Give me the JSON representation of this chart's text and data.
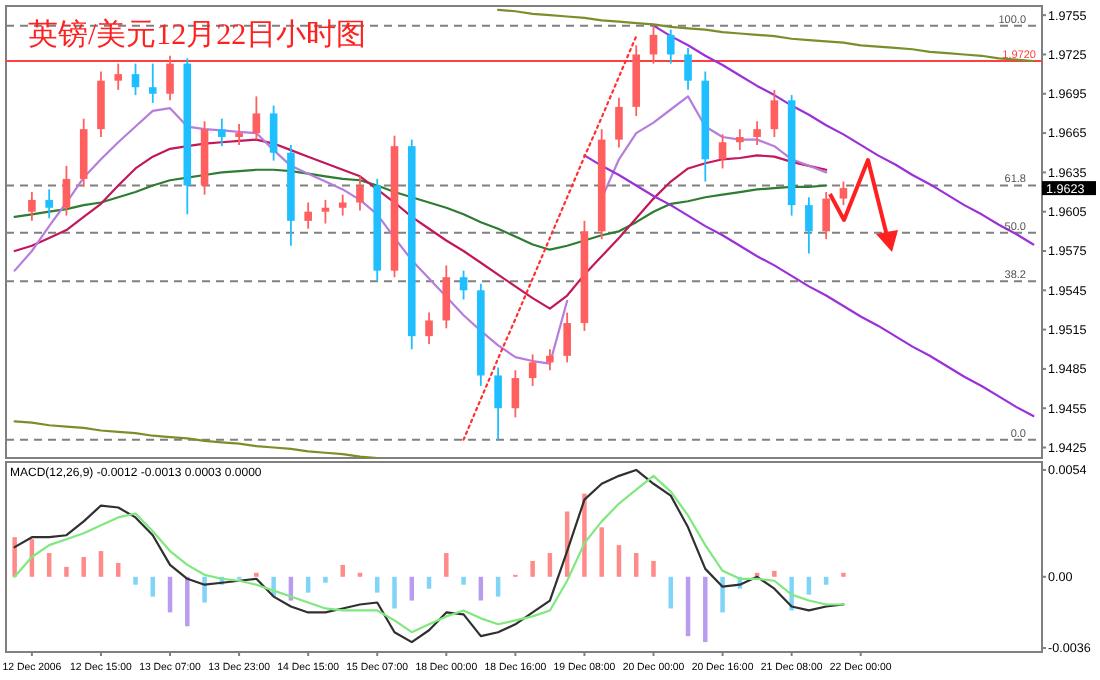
{
  "chart_data": [
    {
      "type": "candlestick",
      "title": "英镑/美元12月22日小时图",
      "categories": [
        null,
        null,
        null,
        null,
        null,
        null,
        null,
        null,
        null,
        null,
        null,
        null,
        null,
        null,
        null,
        null,
        null,
        null,
        null,
        null,
        null,
        null,
        null,
        null,
        null,
        null,
        null,
        null,
        null,
        null,
        null,
        null,
        null,
        null,
        null,
        null,
        null,
        null,
        null,
        null,
        null,
        null,
        null,
        null,
        null,
        null,
        null,
        null,
        null,
        null,
        null,
        null,
        null,
        null,
        null,
        null,
        null,
        null,
        null,
        null
      ],
      "ohlc": [
        null,
        [
          1.9605,
          1.962,
          1.9598,
          1.9614
        ],
        [
          1.9614,
          1.9622,
          1.96,
          1.9608
        ],
        [
          1.9608,
          1.964,
          1.9602,
          1.963
        ],
        [
          1.963,
          1.9676,
          1.9624,
          1.9668
        ],
        [
          1.9668,
          1.9712,
          1.9662,
          1.9705
        ],
        [
          1.9705,
          1.9718,
          1.9698,
          1.971
        ],
        [
          1.971,
          1.9718,
          1.9694,
          1.97
        ],
        [
          1.97,
          1.9718,
          1.9688,
          1.9695
        ],
        [
          1.9695,
          1.9724,
          1.969,
          1.9718
        ],
        [
          1.9718,
          1.9722,
          1.9603,
          1.9625
        ],
        [
          1.9625,
          1.9674,
          1.9618,
          1.9668
        ],
        [
          1.9668,
          1.9676,
          1.9655,
          1.9662
        ],
        [
          1.9662,
          1.9672,
          1.9656,
          1.9665
        ],
        [
          1.9665,
          1.9693,
          1.966,
          1.968
        ],
        [
          1.968,
          1.9686,
          1.9644,
          1.965
        ],
        [
          1.965,
          1.9656,
          1.9579,
          1.9598
        ],
        [
          1.9598,
          1.9612,
          1.9592,
          1.9605
        ],
        [
          1.9605,
          1.9614,
          1.9596,
          1.9608
        ],
        [
          1.9608,
          1.9618,
          1.9602,
          1.9612
        ],
        [
          1.9612,
          1.9632,
          1.9606,
          1.9625
        ],
        [
          1.9625,
          1.963,
          1.9552,
          1.956
        ],
        [
          1.956,
          1.9663,
          1.9555,
          1.9655
        ],
        [
          1.9655,
          1.966,
          1.95,
          1.951
        ],
        [
          1.951,
          1.9528,
          1.9504,
          1.9522
        ],
        [
          1.9522,
          1.9564,
          1.9516,
          1.9555
        ],
        [
          1.9555,
          1.956,
          1.9538,
          1.9545
        ],
        [
          1.9545,
          1.955,
          1.9472,
          1.948
        ],
        [
          1.948,
          1.9486,
          1.9431,
          1.9455
        ],
        [
          1.9455,
          1.9484,
          1.9448,
          1.9478
        ],
        [
          1.9478,
          1.9496,
          1.9472,
          1.949
        ],
        [
          1.949,
          1.95,
          1.9484,
          1.9495
        ],
        [
          1.9495,
          1.9528,
          1.949,
          1.952
        ],
        [
          1.952,
          1.9598,
          1.9514,
          1.959
        ],
        [
          1.959,
          1.9668,
          1.9584,
          1.966
        ],
        [
          1.966,
          1.9692,
          1.9654,
          1.9685
        ],
        [
          1.9685,
          1.9732,
          1.9678,
          1.9725
        ],
        [
          1.9725,
          1.9747,
          1.9718,
          1.974
        ],
        [
          1.974,
          1.9744,
          1.9718,
          1.9725
        ],
        [
          1.9725,
          1.973,
          1.9698,
          1.9705
        ],
        [
          1.9705,
          1.9712,
          1.9628,
          1.9645
        ],
        [
          1.9645,
          1.9664,
          1.9638,
          1.9658
        ],
        [
          1.9658,
          1.9668,
          1.9652,
          1.9662
        ],
        [
          1.9662,
          1.9674,
          1.9656,
          1.9668
        ],
        [
          1.9668,
          1.9698,
          1.9662,
          1.969
        ],
        [
          1.969,
          1.9694,
          1.9602,
          1.961
        ],
        [
          1.961,
          1.9616,
          1.9573,
          1.959
        ],
        [
          1.959,
          1.962,
          1.9584,
          1.9615
        ],
        [
          1.9615,
          1.9628,
          1.961,
          1.9623
        ],
        null,
        null,
        null,
        null,
        null,
        null,
        null,
        null,
        null,
        null,
        null
      ],
      "colors": [
        null,
        "#ff5f5f",
        "#1ebeff",
        "#ff5f5f",
        "#ff5f5f",
        "#ff5f5f",
        "#ff5f5f",
        "#1ebeff",
        "#1ebeff",
        "#ff5f5f",
        "#1ebeff",
        "#ff5f5f",
        "#1ebeff",
        "#ff5f5f",
        "#ff5f5f",
        "#1ebeff",
        "#1ebeff",
        "#ff5f5f",
        "#ff5f5f",
        "#ff5f5f",
        "#ff5f5f",
        "#1ebeff",
        "#ff5f5f",
        "#1ebeff",
        "#ff5f5f",
        "#ff5f5f",
        "#1ebeff",
        "#1ebeff",
        "#1ebeff",
        "#ff5f5f",
        "#ff5f5f",
        "#ff5f5f",
        "#ff5f5f",
        "#ff5f5f",
        "#ff5f5f",
        "#ff5f5f",
        "#ff5f5f",
        "#ff5f5f",
        "#1ebeff",
        "#1ebeff",
        "#1ebeff",
        "#ff5f5f",
        "#ff5f5f",
        "#ff5f5f",
        "#ff5f5f",
        "#1ebeff",
        "#1ebeff",
        "#ff5f5f",
        "#ff5f5f",
        null,
        null,
        null,
        null,
        null,
        null,
        null,
        null,
        null,
        null,
        null
      ],
      "series": [
        {
          "type": "line",
          "color": "#2e7d32",
          "values": [
            1.9601,
            1.9603,
            1.9605,
            1.9607,
            1.961,
            1.9612,
            1.9616,
            1.962,
            1.9625,
            1.9629,
            1.9631,
            1.9633,
            1.9635,
            1.9636,
            1.9637,
            1.9637,
            1.9636,
            1.9634,
            1.9632,
            1.963,
            1.9629,
            1.9625,
            1.962,
            1.9616,
            1.9612,
            1.9608,
            1.9603,
            1.9597,
            1.9592,
            1.9586,
            1.958,
            1.9576,
            1.9579,
            1.9583,
            1.9587,
            1.959,
            1.9597,
            1.9605,
            1.9611,
            1.9613,
            1.9616,
            1.9618,
            1.962,
            1.9622,
            1.9623,
            1.9624,
            1.9624,
            1.9625,
            null,
            null,
            null,
            null,
            null,
            null,
            null,
            null,
            null,
            null,
            null,
            null
          ]
        },
        {
          "type": "line",
          "color": "#c2185b",
          "values": [
            1.9575,
            1.9579,
            1.9585,
            1.9591,
            1.9601,
            1.9611,
            1.9625,
            1.9638,
            1.9647,
            1.9653,
            1.9655,
            1.9657,
            1.9658,
            1.9659,
            1.966,
            1.9657,
            1.9652,
            1.9647,
            1.9642,
            1.9637,
            1.9632,
            1.9622,
            1.9612,
            1.9601,
            1.9592,
            1.9583,
            1.9575,
            1.9566,
            1.9557,
            1.9548,
            1.9539,
            1.9531,
            1.9541,
            1.9557,
            1.9571,
            1.9585,
            1.96,
            1.9615,
            1.9628,
            1.9638,
            1.9642,
            1.9645,
            1.9646,
            1.9648,
            1.9647,
            1.9643,
            1.964,
            1.9637,
            null,
            null,
            null,
            null,
            null,
            null,
            null,
            null,
            null,
            null,
            null,
            null
          ]
        },
        {
          "type": "line",
          "color": "#b57edc",
          "values": [
            1.956,
            1.9575,
            1.9594,
            1.9612,
            1.9631,
            1.9645,
            1.9658,
            1.967,
            1.9682,
            1.9684,
            1.967,
            1.9668,
            1.9667,
            1.9666,
            1.9665,
            1.9652,
            1.964,
            1.9634,
            1.9628,
            1.9622,
            1.9614,
            1.9603,
            1.9585,
            1.9568,
            1.9554,
            1.954,
            1.9526,
            1.9514,
            1.9503,
            1.9494,
            1.9491,
            1.9489,
            1.9537,
            null,
            1.9615,
            1.9645,
            1.9665,
            1.9673,
            1.9683,
            1.9693,
            1.967,
            1.9662,
            1.966,
            1.966,
            1.9655,
            1.9645,
            1.964,
            1.9635,
            null,
            null,
            null,
            null,
            null,
            null,
            null,
            null,
            null,
            null,
            null,
            null
          ]
        },
        {
          "type": "line",
          "color": "#9b30d9",
          "values": [
            null,
            null,
            null,
            null,
            null,
            null,
            null,
            null,
            null,
            null,
            null,
            null,
            null,
            null,
            null,
            null,
            null,
            null,
            null,
            null,
            null,
            null,
            null,
            null,
            null,
            null,
            null,
            null,
            null,
            null,
            null,
            null,
            null,
            null,
            null,
            null,
            null,
            1.9747,
            1.9739,
            1.9732,
            1.9724,
            1.9717,
            1.9709,
            1.9701,
            1.9694,
            1.9686,
            1.9679,
            1.9671,
            1.9664,
            1.9656,
            1.9648,
            1.9641,
            1.9633,
            1.9626,
            1.9618,
            1.961,
            1.9603,
            1.9595,
            1.9588,
            1.958
          ]
        },
        {
          "type": "line",
          "color": "#9b30d9",
          "values": [
            null,
            null,
            null,
            null,
            null,
            null,
            null,
            null,
            null,
            null,
            null,
            null,
            null,
            null,
            null,
            null,
            null,
            null,
            null,
            null,
            null,
            null,
            null,
            null,
            null,
            null,
            null,
            null,
            null,
            null,
            null,
            null,
            null,
            1.9648,
            1.964,
            1.9633,
            1.9625,
            1.9617,
            1.961,
            1.9602,
            1.9594,
            1.9587,
            1.9579,
            1.9571,
            1.9564,
            1.9556,
            1.9548,
            1.9541,
            1.9533,
            1.9525,
            1.9518,
            1.951,
            1.9502,
            1.9495,
            1.9487,
            1.9479,
            1.9472,
            1.9464,
            1.9456,
            1.9449
          ]
        },
        {
          "type": "line",
          "color": "#7a8f2a",
          "values": [
            null,
            null,
            null,
            null,
            null,
            null,
            null,
            null,
            null,
            null,
            null,
            null,
            null,
            null,
            null,
            null,
            null,
            null,
            null,
            null,
            null,
            null,
            null,
            null,
            null,
            null,
            null,
            null,
            1.9759,
            1.9758,
            1.9756,
            1.9755,
            1.9754,
            1.9753,
            1.9751,
            1.975,
            1.9749,
            1.9748,
            1.9746,
            1.9745,
            1.9744,
            1.9742,
            1.9741,
            1.974,
            1.9739,
            1.9737,
            1.9736,
            1.9735,
            1.9734,
            1.9732,
            1.9731,
            1.973,
            1.9729,
            1.9727,
            1.9726,
            1.9725,
            1.9724,
            1.9722,
            1.9721,
            1.972
          ]
        },
        {
          "type": "line",
          "color": "#7a8f2a",
          "values": [
            1.9445,
            1.9444,
            1.9442,
            1.9441,
            1.944,
            1.9438,
            1.9437,
            1.9436,
            1.9434,
            1.9433,
            1.9432,
            1.943,
            1.9429,
            1.9428,
            1.9426,
            1.9425,
            1.9424,
            1.9422,
            1.9421,
            1.942,
            1.9418,
            1.9417,
            null,
            null,
            null,
            null,
            null,
            null,
            null,
            null,
            null,
            null,
            null,
            null,
            null,
            null,
            null,
            null,
            null,
            null,
            null,
            null,
            null,
            null,
            null,
            null,
            null,
            null,
            null,
            null,
            null,
            null,
            null,
            null,
            null,
            null,
            null,
            null,
            null,
            null
          ]
        },
        {
          "type": "line",
          "color": "#ff3030",
          "line_style": "dotted",
          "values": [
            null,
            null,
            null,
            null,
            null,
            null,
            null,
            null,
            null,
            null,
            null,
            null,
            null,
            null,
            null,
            null,
            null,
            null,
            null,
            null,
            null,
            null,
            null,
            null,
            null,
            null,
            1.9431,
            1.9462,
            1.9493,
            1.9523,
            1.9554,
            1.9585,
            1.9616,
            1.9647,
            1.9677,
            1.9708,
            1.9739,
            null,
            null,
            null,
            null,
            null,
            null,
            null,
            null,
            null,
            null,
            null,
            null,
            null,
            null,
            null,
            null,
            null,
            null,
            null,
            null,
            null,
            null,
            null
          ]
        }
      ],
      "ylim": [
        1.9417,
        1.9762
      ],
      "yticks": [
        1.9425,
        1.9455,
        1.9485,
        1.9515,
        1.9545,
        1.9575,
        1.9605,
        1.9635,
        1.9665,
        1.9695,
        1.9725,
        1.9755
      ],
      "tick_labels": "y",
      "ref_lines": [
        {
          "axis": "y",
          "value": 1.9747,
          "color": "#808080",
          "line_style": "dashed"
        },
        {
          "axis": "y",
          "value": 1.9625,
          "color": "#808080",
          "line_style": "dashed"
        },
        {
          "axis": "y",
          "value": 1.9589,
          "color": "#808080",
          "line_style": "dashed"
        },
        {
          "axis": "y",
          "value": 1.9552,
          "color": "#808080",
          "line_style": "dashed"
        },
        {
          "axis": "y",
          "value": 1.9431,
          "color": "#808080",
          "line_style": "dashed"
        },
        {
          "axis": "y",
          "value": 1.972,
          "label": "1.9720",
          "color": "#ff4040",
          "line_style": "solid"
        }
      ],
      "annotations": [
        {
          "text": "100.0",
          "y": 1.9747
        },
        {
          "text": "61.8",
          "y": 1.9625
        },
        {
          "text": "50.0",
          "y": 1.9589
        },
        {
          "text": "38.2",
          "y": 1.9552
        },
        {
          "text": "0.0",
          "y": 1.9431
        },
        "1.9623"
      ]
    },
    {
      "type": "bar",
      "title": "MACD(12,26,9) -0.0012 -0.0013 0.0003 0.0000",
      "categories": [
        null,
        "12 Dec 2006",
        null,
        null,
        null,
        "12 Dec 15:00",
        null,
        null,
        null,
        "13 Dec 07:00",
        null,
        null,
        null,
        "13 Dec 23:00",
        null,
        null,
        null,
        "14 Dec 15:00",
        null,
        null,
        null,
        "15 Dec 07:00",
        null,
        null,
        null,
        "18 Dec 00:00",
        null,
        null,
        null,
        "18 Dec 16:00",
        null,
        null,
        null,
        "19 Dec 08:00",
        null,
        null,
        null,
        "20 Dec 00:00",
        null,
        null,
        null,
        "20 Dec 16:00",
        null,
        null,
        null,
        "21 Dec 08:00",
        null,
        null,
        null,
        "22 Dec 00:00",
        null,
        null,
        null,
        null,
        null,
        null,
        null,
        null,
        null,
        null
      ],
      "series": [
        {
          "values": [
            0.002,
            0.0019,
            0.0012,
            0.0005,
            0.001,
            0.0013,
            0.0007,
            -0.0004,
            -0.001,
            -0.0018,
            -0.0025,
            -0.0013,
            -0.0004,
            -0.0001,
            0.0002,
            -0.001,
            -0.0012,
            -0.0008,
            -0.0003,
            0.0006,
            0.0002,
            -0.0008,
            -0.0016,
            -0.0012,
            -0.0006,
            0.0012,
            -0.0004,
            -0.0012,
            -0.001,
            0.0001,
            0.0008,
            0.0012,
            0.0033,
            0.0042,
            0.0025,
            0.0016,
            0.0012,
            0.0008,
            -0.0016,
            -0.003,
            -0.0033,
            -0.0018,
            -0.0006,
            0.0002,
            0.0003,
            -0.0017,
            -0.0009,
            -0.0004,
            0.0002,
            null,
            null,
            null,
            null,
            null,
            null,
            null,
            null,
            null,
            null,
            null
          ],
          "colors": [
            "#ff8a8a",
            "#ff8a8a",
            "#ff8a8a",
            "#ff8a8a",
            "#ff8a8a",
            "#ff8a8a",
            "#ff8a8a",
            "#7fd4f7",
            "#7fd4f7",
            "#b99cf0",
            "#b99cf0",
            "#7fd4f7",
            "#7fd4f7",
            "#7fd4f7",
            "#ff8a8a",
            "#7fd4f7",
            "#b99cf0",
            "#7fd4f7",
            "#7fd4f7",
            "#ff8a8a",
            "#ff8a8a",
            "#7fd4f7",
            "#7fd4f7",
            "#b99cf0",
            "#7fd4f7",
            "#ff8a8a",
            "#7fd4f7",
            "#b99cf0",
            "#7fd4f7",
            "#ff8a8a",
            "#ff8a8a",
            "#ff8a8a",
            "#ff8a8a",
            "#ff8a8a",
            "#ff8a8a",
            "#ff8a8a",
            "#ff8a8a",
            "#ff8a8a",
            "#7fd4f7",
            "#b99cf0",
            "#b99cf0",
            "#7fd4f7",
            "#7fd4f7",
            "#ff8a8a",
            "#ff8a8a",
            "#7fd4f7",
            "#7fd4f7",
            "#7fd4f7",
            "#ff8a8a",
            null,
            null,
            null,
            null,
            null,
            null,
            null,
            null,
            null,
            null,
            null
          ]
        },
        {
          "type": "line",
          "color": "#303030",
          "values": [
            0.0015,
            0.002,
            0.002,
            0.0021,
            0.0028,
            0.0036,
            0.0035,
            0.003,
            0.0021,
            0.0006,
            -0.0001,
            -0.0004,
            -0.0003,
            -0.0002,
            -0.0001,
            -0.001,
            -0.0015,
            -0.0018,
            -0.0018,
            -0.0016,
            -0.0014,
            -0.0013,
            -0.0028,
            -0.0033,
            -0.0027,
            -0.0018,
            -0.0019,
            -0.003,
            -0.0028,
            -0.0024,
            -0.0018,
            -0.0012,
            0.0013,
            0.0039,
            0.0047,
            0.0051,
            0.0054,
            0.0047,
            0.0041,
            0.0025,
            0.0004,
            -0.0005,
            -0.0004,
            0.0,
            -0.0006,
            -0.0015,
            -0.0017,
            -0.0015,
            -0.0014,
            null,
            null,
            null,
            null,
            null,
            null,
            null,
            null,
            null,
            null,
            null
          ]
        },
        {
          "type": "line",
          "color": "#7fe87f",
          "values": [
            0.0,
            0.001,
            0.0016,
            0.0019,
            0.0022,
            0.0026,
            0.003,
            0.0032,
            0.0023,
            0.0013,
            0.0006,
            0.0001,
            -0.0001,
            -0.0002,
            -0.0004,
            -0.0007,
            -0.001,
            -0.0013,
            -0.0016,
            -0.0017,
            -0.0017,
            -0.0017,
            -0.0022,
            -0.0028,
            -0.0024,
            -0.002,
            -0.0017,
            -0.0021,
            -0.0024,
            -0.0022,
            -0.002,
            -0.0017,
            -0.0002,
            0.0017,
            0.0028,
            0.0037,
            0.0044,
            0.0051,
            0.0043,
            0.0031,
            0.0016,
            0.0003,
            -0.0001,
            -0.0001,
            -0.0002,
            -0.0009,
            -0.0012,
            -0.0014,
            -0.0014,
            null,
            null,
            null,
            null,
            null,
            null,
            null,
            null,
            null,
            null,
            null
          ]
        }
      ],
      "ylim": [
        -0.0038,
        0.0058
      ],
      "yticks": [
        0.0054,
        {
          "value": 0,
          "label": "0.00"
        },
        {
          "value": -0.0036,
          "label": "-0.0036"
        }
      ]
    }
  ]
}
